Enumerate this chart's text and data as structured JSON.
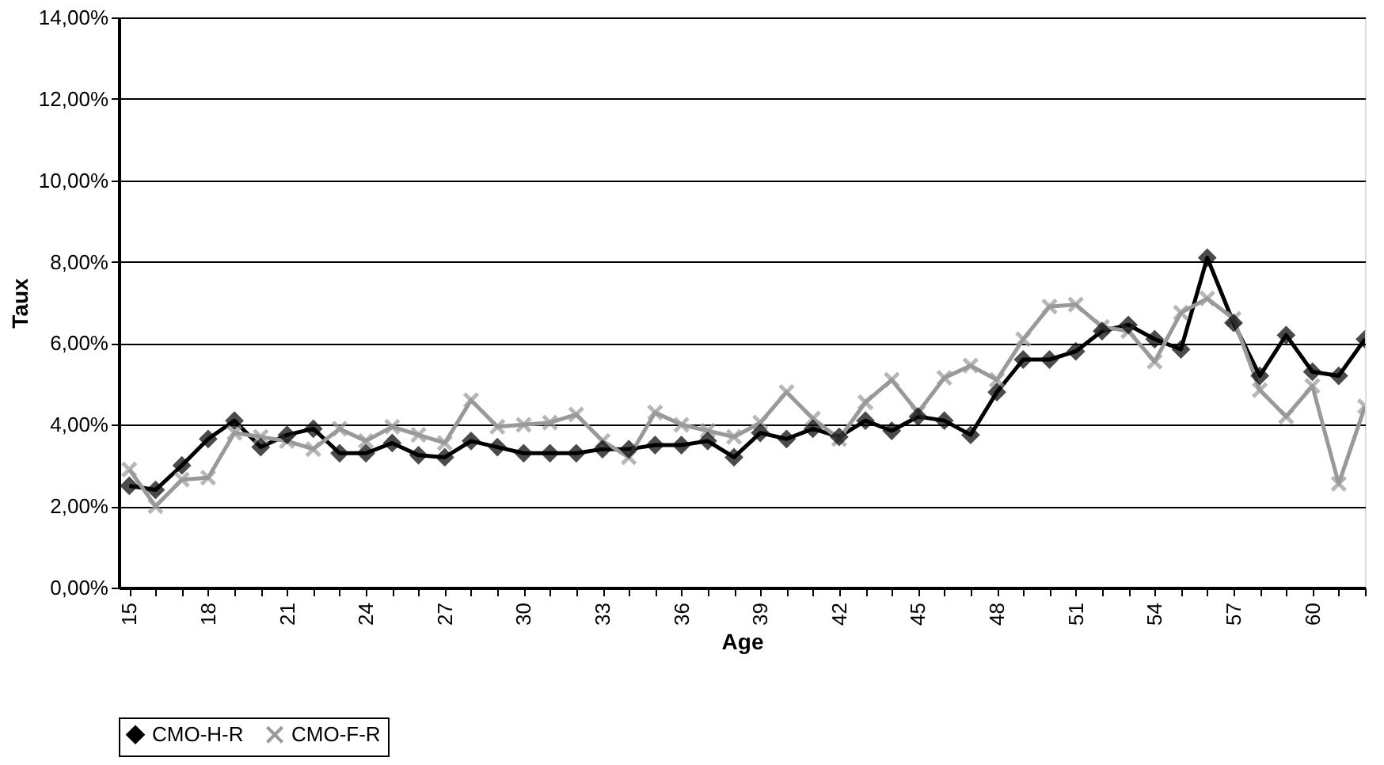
{
  "chart_data": {
    "type": "line",
    "xlabel": "Age",
    "ylabel": "Taux",
    "x": [
      15,
      16,
      17,
      18,
      19,
      20,
      21,
      22,
      23,
      24,
      25,
      26,
      27,
      28,
      29,
      30,
      31,
      32,
      33,
      34,
      35,
      36,
      37,
      38,
      39,
      40,
      41,
      42,
      43,
      44,
      45,
      46,
      47,
      48,
      49,
      50,
      51,
      52,
      53,
      54,
      55,
      56,
      57,
      58,
      59,
      60,
      61,
      62
    ],
    "series": [
      {
        "name": "CMO-H-R",
        "color": "#000000",
        "marker": "diamond",
        "line_style": "solid",
        "values": [
          2.5,
          2.4,
          3.0,
          3.65,
          4.1,
          3.45,
          3.75,
          3.9,
          3.3,
          3.3,
          3.55,
          3.25,
          3.2,
          3.6,
          3.45,
          3.3,
          3.3,
          3.3,
          3.4,
          3.4,
          3.5,
          3.5,
          3.6,
          3.2,
          3.8,
          3.65,
          3.9,
          3.7,
          4.1,
          3.85,
          4.2,
          4.1,
          3.75,
          4.8,
          5.6,
          5.6,
          5.8,
          6.3,
          6.45,
          6.1,
          5.85,
          8.1,
          6.5,
          5.2,
          6.2,
          5.3,
          5.2,
          6.1
        ]
      },
      {
        "name": "CMO-F-R",
        "color": "#999999",
        "marker": "cross",
        "line_style": "solid",
        "values": [
          2.9,
          2.0,
          2.65,
          2.7,
          3.8,
          3.7,
          3.6,
          3.4,
          3.9,
          3.6,
          3.95,
          3.75,
          3.55,
          4.6,
          3.95,
          4.0,
          4.05,
          4.25,
          3.6,
          3.2,
          4.3,
          4.0,
          3.85,
          3.7,
          4.05,
          4.8,
          4.15,
          3.65,
          4.55,
          5.1,
          4.3,
          5.15,
          5.45,
          5.1,
          6.1,
          6.9,
          6.95,
          6.4,
          6.3,
          5.55,
          6.75,
          7.1,
          6.6,
          4.85,
          4.2,
          4.95,
          2.55,
          4.45
        ]
      }
    ],
    "ylim": [
      0,
      14
    ],
    "yticks": [
      {
        "value": 0,
        "label": "0,00%"
      },
      {
        "value": 2,
        "label": "2,00%"
      },
      {
        "value": 4,
        "label": "4,00%"
      },
      {
        "value": 6,
        "label": "6,00%"
      },
      {
        "value": 8,
        "label": "8,00%"
      },
      {
        "value": 10,
        "label": "10,00%"
      },
      {
        "value": 12,
        "label": "12,00%"
      },
      {
        "value": 14,
        "label": "14,00%"
      }
    ],
    "xlim": [
      14.6,
      62
    ],
    "xticks": [
      15,
      {
        "value": 16,
        "label": null
      },
      {
        "value": 17,
        "label": null
      },
      18,
      {
        "value": 19,
        "label": null
      },
      {
        "value": 20,
        "label": null
      },
      21,
      {
        "value": 22,
        "label": null
      },
      {
        "value": 23,
        "label": null
      },
      24,
      {
        "value": 25,
        "label": null
      },
      {
        "value": 26,
        "label": null
      },
      27,
      {
        "value": 28,
        "label": null
      },
      {
        "value": 29,
        "label": null
      },
      30,
      {
        "value": 31,
        "label": null
      },
      {
        "value": 32,
        "label": null
      },
      33,
      {
        "value": 34,
        "label": null
      },
      {
        "value": 35,
        "label": null
      },
      36,
      {
        "value": 37,
        "label": null
      },
      {
        "value": 38,
        "label": null
      },
      39,
      {
        "value": 40,
        "label": null
      },
      {
        "value": 41,
        "label": null
      },
      42,
      {
        "value": 43,
        "label": null
      },
      {
        "value": 44,
        "label": null
      },
      45,
      {
        "value": 46,
        "label": null
      },
      {
        "value": 47,
        "label": null
      },
      48,
      {
        "value": 49,
        "label": null
      },
      {
        "value": 50,
        "label": null
      },
      51,
      {
        "value": 52,
        "label": null
      },
      {
        "value": 53,
        "label": null
      },
      54,
      {
        "value": 55,
        "label": null
      },
      {
        "value": 56,
        "label": null
      },
      57,
      {
        "value": 58,
        "label": null
      },
      {
        "value": 59,
        "label": null
      },
      60,
      {
        "value": 61,
        "label": null
      },
      {
        "value": 62,
        "label": null
      }
    ],
    "grid": "y",
    "legend": "bottom"
  }
}
